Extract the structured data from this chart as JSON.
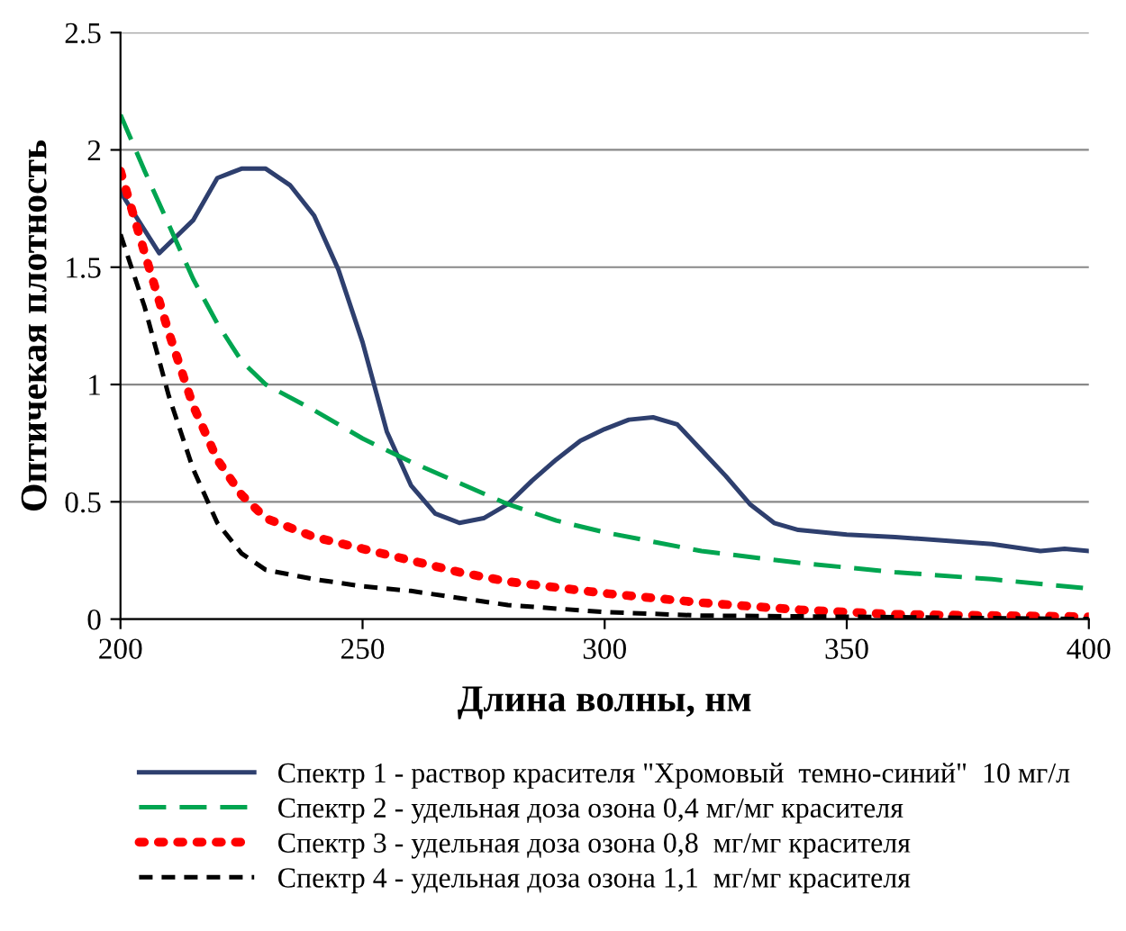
{
  "chart_data": {
    "type": "line",
    "xlabel": "Длина волны, нм",
    "ylabel": "Оптичекая плотность",
    "xlim": [
      200,
      400
    ],
    "xticks": [
      200,
      250,
      300,
      350,
      400
    ],
    "ylim": [
      0,
      2.5
    ],
    "yticks": [
      0,
      0.5,
      1,
      1.5,
      2,
      2.5
    ],
    "grid": "y",
    "legend": "bottom",
    "marker": "none",
    "series": [
      {
        "name": "Спектр 1 - раствор красителя \"Хромовый  темно-синий\"  10 мг/л",
        "color": "#2e3f6e",
        "line_style": "solid",
        "x": [
          200,
          208,
          215,
          220,
          225,
          230,
          235,
          240,
          245,
          250,
          255,
          260,
          265,
          270,
          275,
          280,
          285,
          290,
          295,
          300,
          305,
          310,
          315,
          320,
          325,
          330,
          335,
          340,
          350,
          360,
          380,
          390,
          395,
          400
        ],
        "values": [
          1.82,
          1.56,
          1.7,
          1.88,
          1.92,
          1.92,
          1.85,
          1.72,
          1.49,
          1.18,
          0.8,
          0.57,
          0.45,
          0.41,
          0.43,
          0.49,
          0.59,
          0.68,
          0.76,
          0.81,
          0.85,
          0.86,
          0.83,
          0.72,
          0.61,
          0.49,
          0.41,
          0.38,
          0.36,
          0.35,
          0.32,
          0.29,
          0.3,
          0.29
        ]
      },
      {
        "name": "Спектр 2 - удельная доза озона 0,4 мг/мг красителя",
        "color": "#00a550",
        "line_style": "dashed",
        "x": [
          200,
          205,
          210,
          215,
          220,
          225,
          230,
          240,
          250,
          260,
          270,
          280,
          290,
          300,
          320,
          340,
          360,
          380,
          400
        ],
        "values": [
          2.15,
          1.91,
          1.68,
          1.45,
          1.26,
          1.1,
          1.0,
          0.89,
          0.77,
          0.67,
          0.58,
          0.49,
          0.42,
          0.37,
          0.29,
          0.24,
          0.2,
          0.17,
          0.13
        ]
      },
      {
        "name": "Спектр 3 - удельная доза озона 0,8  мг/мг красителя",
        "color": "#ff0000",
        "line_style": "dotted",
        "x": [
          200,
          205,
          210,
          215,
          220,
          225,
          230,
          240,
          250,
          260,
          270,
          280,
          300,
          320,
          340,
          360,
          400
        ],
        "values": [
          1.91,
          1.56,
          1.22,
          0.91,
          0.68,
          0.53,
          0.43,
          0.35,
          0.3,
          0.25,
          0.2,
          0.16,
          0.11,
          0.07,
          0.04,
          0.02,
          0.01
        ]
      },
      {
        "name": "Спектр 4 - удельная доза озона 1,1  мг/мг красителя",
        "color": "#000000",
        "line_style": "short_dashed",
        "x": [
          200,
          205,
          210,
          215,
          220,
          225,
          230,
          240,
          250,
          260,
          270,
          280,
          300,
          320,
          350,
          400
        ],
        "values": [
          1.64,
          1.33,
          0.95,
          0.64,
          0.41,
          0.28,
          0.21,
          0.17,
          0.14,
          0.12,
          0.09,
          0.06,
          0.03,
          0.015,
          0.01,
          0
        ]
      }
    ]
  }
}
